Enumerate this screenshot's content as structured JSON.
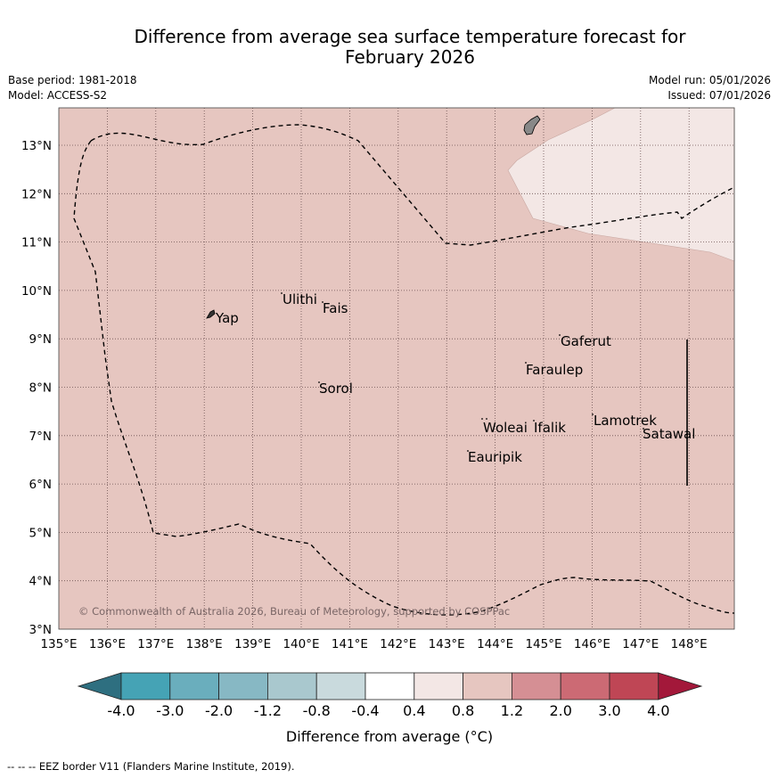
{
  "title": {
    "line1": "Difference from average sea surface temperature forecast for",
    "line2": "February 2026"
  },
  "meta": {
    "base_period": "Base period: 1981-2018",
    "model": "Model: ACCESS-S2",
    "model_run": "Model run: 05/01/2026",
    "issued": "Issued: 07/01/2026"
  },
  "axes": {
    "lon_labels": [
      "135°E",
      "136°E",
      "137°E",
      "138°E",
      "139°E",
      "140°E",
      "141°E",
      "142°E",
      "143°E",
      "144°E",
      "145°E",
      "146°E",
      "147°E",
      "148°E"
    ],
    "lat_labels": [
      "3°N",
      "4°N",
      "5°N",
      "6°N",
      "7°N",
      "8°N",
      "9°N",
      "10°N",
      "11°N",
      "12°N",
      "13°N"
    ]
  },
  "places": {
    "yap": "Yap",
    "ulithi": "Ulithi",
    "fais": "Fais",
    "sorol": "Sorol",
    "gaferut": "Gaferut",
    "faraulep": "Faraulep",
    "woleai": "Woleai",
    "ifalik": "Ifalik",
    "eauripik": "Eauripik",
    "lamotrek": "Lamotrek",
    "satawal": "Satawal"
  },
  "copyright": "© Commonwealth of Australia 2026, Bureau of Meteorology, supported by COSPPac",
  "colorbar": {
    "labels": [
      "-4.0",
      "-3.0",
      "-2.0",
      "-1.2",
      "-0.8",
      "-0.4",
      "0.4",
      "0.8",
      "1.2",
      "2.0",
      "3.0",
      "4.0"
    ],
    "colors": [
      "#2e6f80",
      "#45a3b5",
      "#6aaebd",
      "#87b8c4",
      "#a9c8ce",
      "#c9dadd",
      "#ffffff",
      "#f3e7e5",
      "#e6c6c0",
      "#d58f94",
      "#cc6a74",
      "#bf4655",
      "#a3183a"
    ],
    "title": "Difference from average (°C)"
  },
  "map_colors": {
    "anomaly_0_8_to_1_2": "#e6c6c0",
    "anomaly_0_4_to_0_8": "#f3e7e5",
    "land": "#888888"
  },
  "footer": "--  --  -- EEZ border V11 (Flanders Marine Institute, 2019)."
}
